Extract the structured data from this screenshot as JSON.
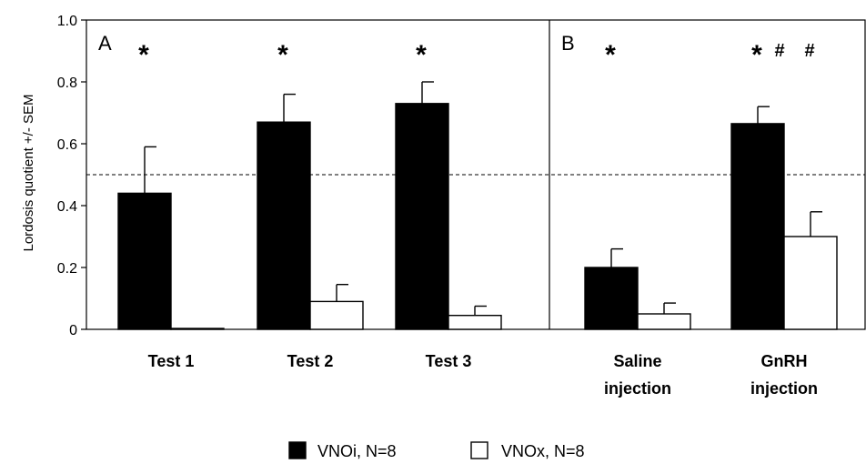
{
  "chart_data": {
    "type": "bar",
    "ylabel": "Lordosis quotient  +/- SEM",
    "ylim": [
      0,
      1.0
    ],
    "yticks": [
      "0",
      "0.2",
      "0.4",
      "0.6",
      "0.8",
      "1.0"
    ],
    "reference_line": 0.5,
    "grid": false,
    "legend_placement": "bottom",
    "series": [
      {
        "name": "VNOi, N=8",
        "color": "#000000"
      },
      {
        "name": "VNOx, N=8",
        "color": "#ffffff"
      }
    ],
    "panels": [
      {
        "label": "A",
        "groups": [
          {
            "lines": [
              "Test 1"
            ],
            "values": [
              0.44,
              0.0
            ],
            "errors": [
              0.15,
              0.0
            ],
            "marks": [
              "*",
              ""
            ]
          },
          {
            "lines": [
              "Test 2"
            ],
            "values": [
              0.67,
              0.09
            ],
            "errors": [
              0.09,
              0.055
            ],
            "marks": [
              "*",
              ""
            ]
          },
          {
            "lines": [
              "Test 3"
            ],
            "values": [
              0.73,
              0.045
            ],
            "errors": [
              0.07,
              0.03
            ],
            "marks": [
              "*",
              ""
            ]
          }
        ]
      },
      {
        "label": "B",
        "groups": [
          {
            "lines": [
              "Saline",
              "injection"
            ],
            "values": [
              0.2,
              0.05
            ],
            "errors": [
              0.06,
              0.035
            ],
            "marks": [
              "*",
              ""
            ]
          },
          {
            "lines": [
              "GnRH",
              "injection"
            ],
            "values": [
              0.665,
              0.3
            ],
            "errors": [
              0.055,
              0.08
            ],
            "marks": [
              "*#",
              "#"
            ]
          }
        ]
      }
    ]
  }
}
